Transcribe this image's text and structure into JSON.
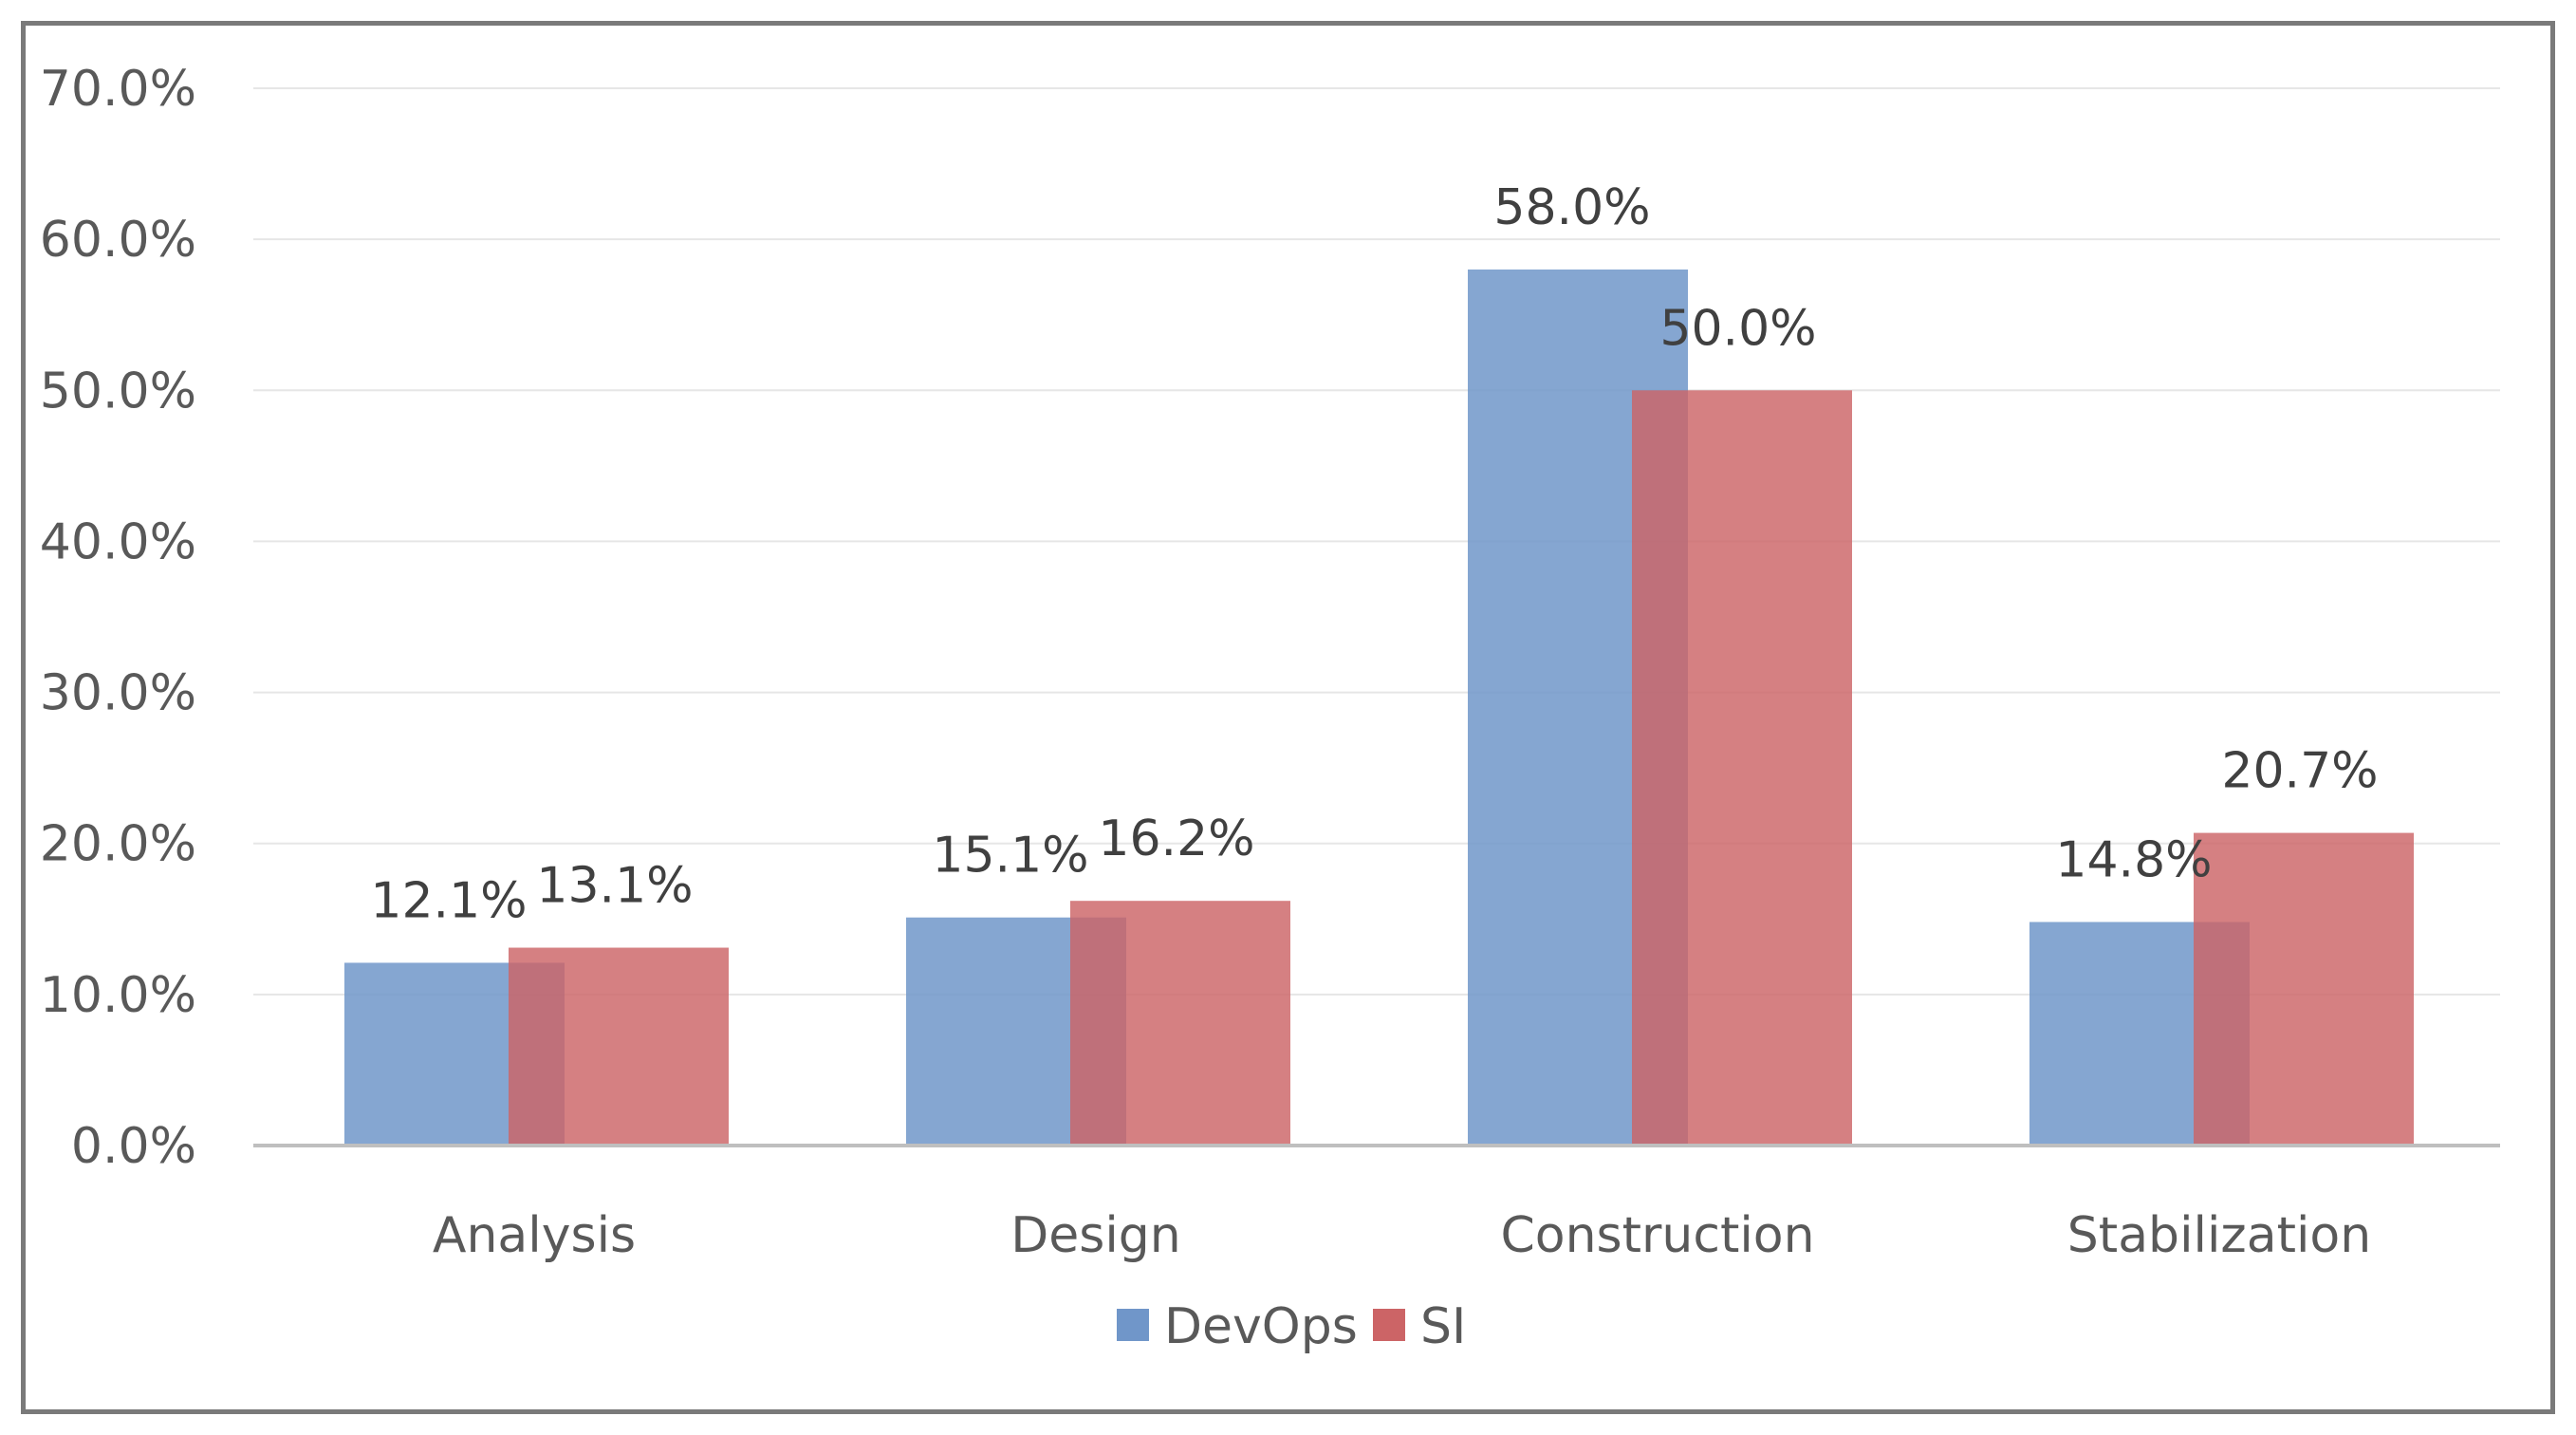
{
  "chart_data": {
    "type": "bar",
    "title": "",
    "xlabel": "",
    "ylabel": "",
    "ylim": [
      0,
      70
    ],
    "yticks": [
      0,
      10,
      20,
      30,
      40,
      50,
      60,
      70
    ],
    "y_tick_labels": [
      "0.0%",
      "10.0%",
      "20.0%",
      "30.0%",
      "40.0%",
      "50.0%",
      "60.0%",
      "70.0%"
    ],
    "grid": true,
    "legend_position": "bottom-center",
    "categories": [
      "Analysis",
      "Design",
      "Construction",
      "Stabilization"
    ],
    "series": [
      {
        "name": "DevOps",
        "color": "#7096C9",
        "values": [
          12.1,
          15.1,
          58.0,
          14.8
        ],
        "labels": [
          "12.1%",
          "15.1%",
          "58.0%",
          "14.8%"
        ]
      },
      {
        "name": "SI",
        "color": "#CC6466",
        "values": [
          13.1,
          16.2,
          50.0,
          20.7
        ],
        "labels": [
          "13.1%",
          "16.2%",
          "50.0%",
          "20.7%"
        ]
      }
    ]
  }
}
